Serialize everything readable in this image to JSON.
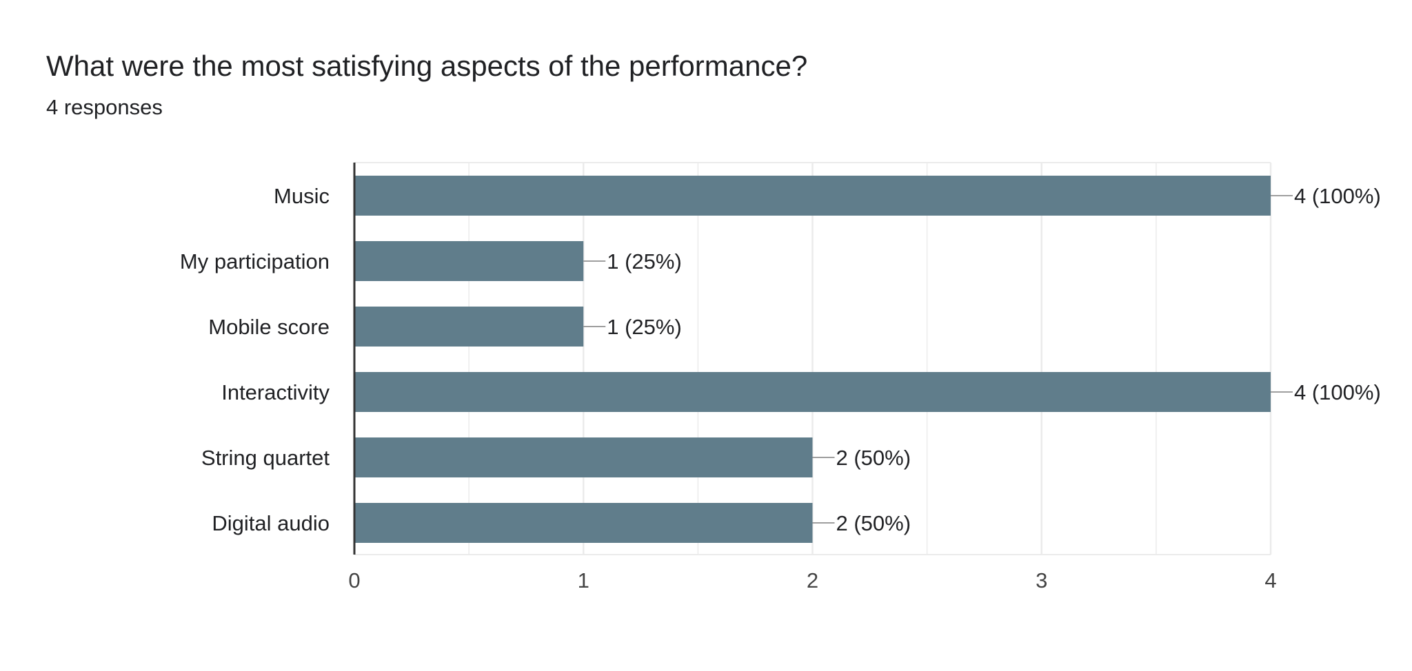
{
  "question": {
    "title": "What were the most satisfying aspects of the performance?",
    "responses": "4 responses"
  },
  "colors": {
    "bar": "#607d8b",
    "grid": "#ebebeb",
    "axis": "#333333",
    "connector": "#9e9e9e",
    "text": "#202124",
    "tick_text": "#444444"
  },
  "chart_data": {
    "type": "bar",
    "orientation": "horizontal",
    "categories": [
      "Music",
      "My participation",
      "Mobile score",
      "Interactivity",
      "String quartet",
      "Digital audio"
    ],
    "values": [
      4,
      1,
      1,
      4,
      2,
      2
    ],
    "data_labels": [
      "4 (100%)",
      "1 (25%)",
      "1 (25%)",
      "4 (100%)",
      "2 (50%)",
      "2 (50%)"
    ],
    "xlim": [
      0,
      4
    ],
    "xticks": [
      "0",
      "1",
      "2",
      "3",
      "4"
    ],
    "grid": true
  }
}
